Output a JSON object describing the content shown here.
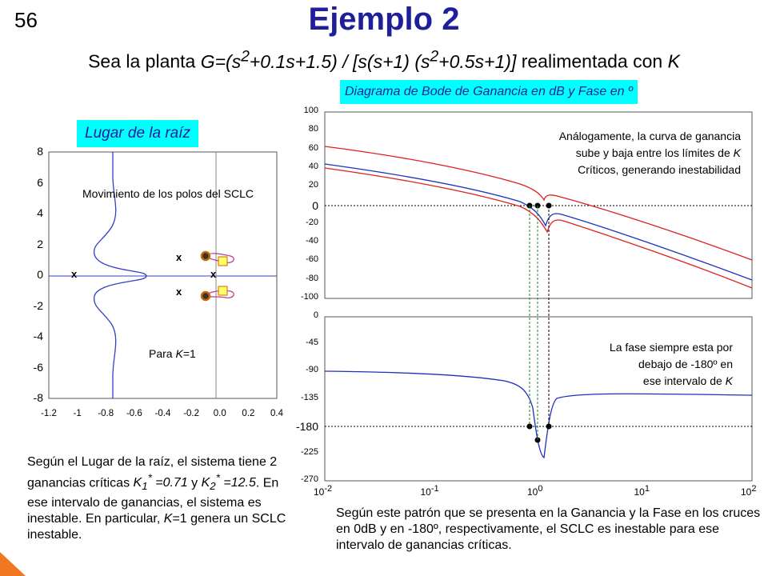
{
  "slide": {
    "number": "56",
    "title": "Ejemplo 2",
    "subtitle_html": "Sea la planta <i>G=(s<sup>2</sup>+0.1s+1.5) / [s(s+1) (s<sup>2</sup>+0.5s+1)]</i>  realimentada con <i>K</i>"
  },
  "root_locus": {
    "label": "Lugar de la raíz",
    "y_ticks": [
      "8",
      "6",
      "4",
      "2",
      "0",
      "-2",
      "-4",
      "-6",
      "-8"
    ],
    "x_ticks": [
      "-1.2",
      "-1",
      "-0.8",
      "-0.6",
      "-0.4",
      "-0.2",
      "0.0",
      "0.2",
      "0.4"
    ],
    "movement_text": "Movimiento de los polos del SCLC",
    "k_text_html": "Para <i>K</i>=1",
    "pole_marker": "x",
    "colors": {
      "locus": "#3340c8",
      "path": "#c03a8e",
      "zero": "#ffff66",
      "pole_ring": "#cc6600"
    }
  },
  "bode": {
    "label": "Diagrama de Bode de Ganancia en dB y Fase en º",
    "gain_ticks": [
      "100",
      "80",
      "60",
      "40",
      "20",
      "0",
      "-20",
      "-40",
      "-60",
      "-80",
      "-100"
    ],
    "phase_ticks": [
      "0",
      "-45",
      "-90",
      "-135",
      "-180",
      "-225",
      "-270"
    ],
    "freq_ticks": [
      {
        "base": "10",
        "exp": "-2"
      },
      {
        "base": "10",
        "exp": "-1"
      },
      {
        "base": "10",
        "exp": "0"
      },
      {
        "base": "10",
        "exp": "1"
      },
      {
        "base": "10",
        "exp": "2"
      }
    ],
    "gain_annotation_html": "Análogamente, la curva de ganancia<br>sube y baja entre los límites de <i>K</i><br>Críticos, generando inestabilidad",
    "phase_annotation_html": "La fase siempre esta por<br>debajo de -180º en<br>ese intervalo de <i>K</i>",
    "colors": {
      "upper": "#e02020",
      "mid": "#2030c0",
      "lower": "#e02020"
    }
  },
  "texts": {
    "rl_paragraph_html": "Según el Lugar de la raíz, el sistema tiene 2 ganancias críticas <i>K<sub>1</sub><sup>*</sup> =0.71</i> y <i>K<sub>2</sub><sup>*</sup> =12.5</i>. En ese intervalo de ganancias, el sistema es inestable. En particular, <i>K</i>=1 genera un SCLC inestable.",
    "bode_paragraph": "Según este patrón que se presenta en la Ganancia y la Fase en los cruces en 0dB y en -180º, respectivamente, el SCLC es inestable para ese intervalo de ganancias críticas."
  }
}
